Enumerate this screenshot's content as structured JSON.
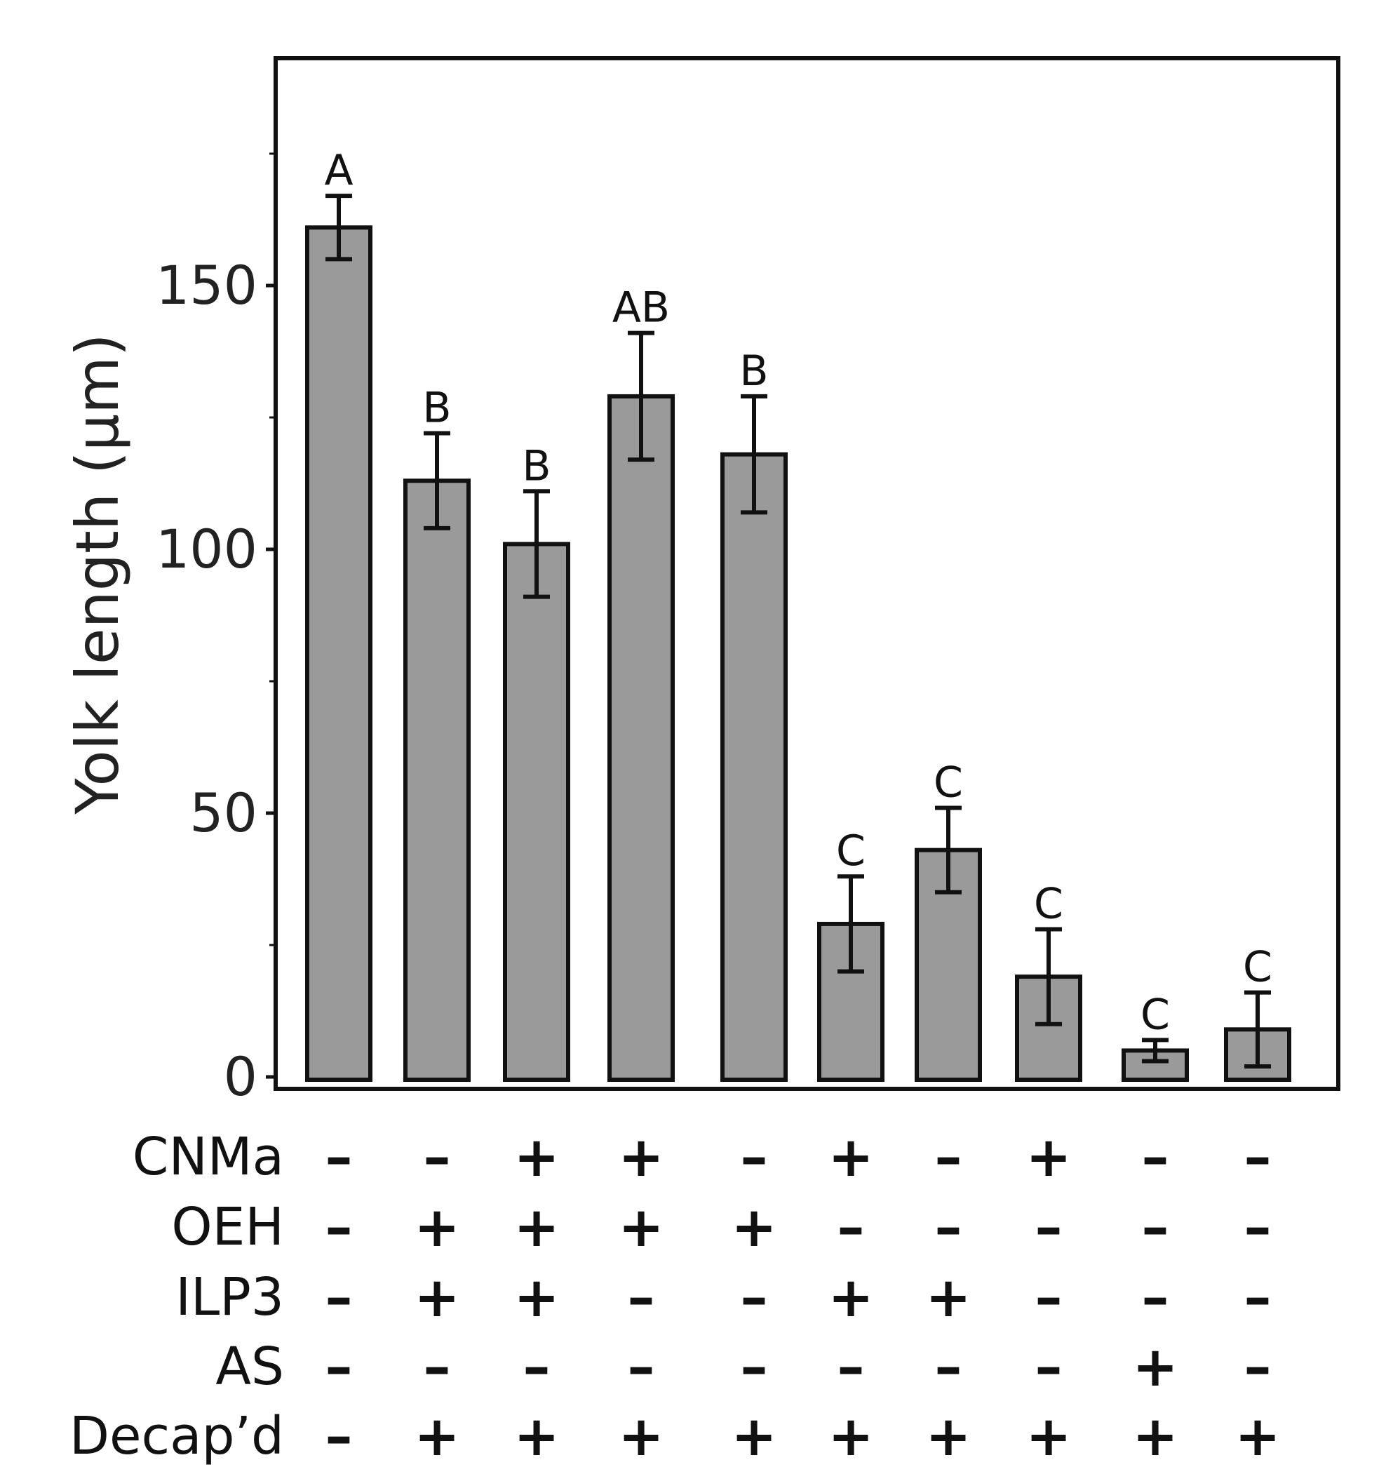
{
  "chart_data": {
    "type": "bar",
    "title": "",
    "xlabel": "",
    "ylabel": "Yolk length (µm)",
    "ylim": [
      0,
      195
    ],
    "yticks": [
      0,
      50,
      100,
      150
    ],
    "grid": false,
    "legend": "none",
    "bar_color": "#9a9a9a",
    "values": [
      161,
      113,
      101,
      129,
      118,
      29,
      43,
      19,
      5,
      9
    ],
    "errors": [
      6,
      9,
      10,
      12,
      11,
      9,
      8,
      9,
      2,
      7
    ],
    "significance": [
      "A",
      "B",
      "B",
      "AB",
      "B",
      "C",
      "C",
      "C",
      "C",
      "C"
    ],
    "treatments": [
      {
        "label": "CNMa",
        "signs": [
          "–",
          "–",
          "+",
          "+",
          "–",
          "+",
          "–",
          "+",
          "–",
          "–"
        ]
      },
      {
        "label": "OEH",
        "signs": [
          "–",
          "+",
          "+",
          "+",
          "+",
          "–",
          "–",
          "–",
          "–",
          "–"
        ]
      },
      {
        "label": "ILP3",
        "signs": [
          "–",
          "+",
          "+",
          "–",
          "–",
          "+",
          "+",
          "–",
          "–",
          "–"
        ]
      },
      {
        "label": "AS",
        "signs": [
          "–",
          "–",
          "–",
          "–",
          "–",
          "–",
          "–",
          "–",
          "+",
          "–"
        ]
      },
      {
        "label": "Decap’d",
        "signs": [
          "–",
          "+",
          "+",
          "+",
          "+",
          "+",
          "+",
          "+",
          "+",
          "+"
        ]
      }
    ]
  }
}
